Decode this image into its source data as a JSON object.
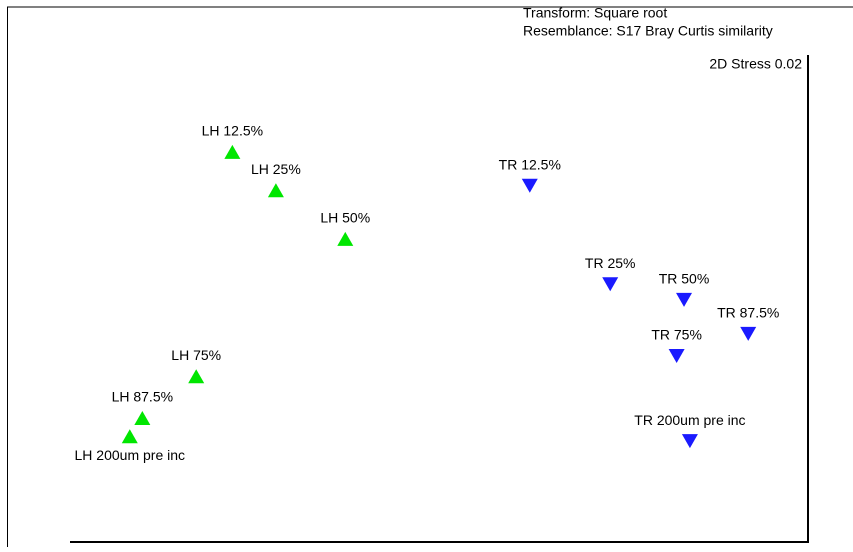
{
  "chart_data": {
    "type": "scatter",
    "notes": [
      "Transform: Square root",
      "Resemblance: S17 Bray Curtis similarity"
    ],
    "stress": "2D Stress 0.02",
    "xlim": [
      0,
      100
    ],
    "ylim": [
      0,
      100
    ],
    "series": [
      {
        "color": "#00e600",
        "marker": "triangle-up",
        "labels": [
          "LH 12.5%",
          "LH 25%",
          "LH 50%",
          "LH 75%",
          "LH 87.5%",
          "LH 200um pre inc"
        ],
        "x": [
          22.0,
          27.9,
          37.3,
          17.1,
          9.8,
          8.1
        ],
        "values": [
          79.3,
          71.5,
          61.6,
          33.7,
          25.2,
          21.5
        ]
      },
      {
        "color": "#1a1aff",
        "marker": "triangle-down",
        "labels": [
          "TR 12.5%",
          "TR 25%",
          "TR 50%",
          "TR 87.5%",
          "TR 75%",
          "TR 200um pre inc"
        ],
        "x": [
          62.3,
          73.2,
          83.2,
          91.9,
          82.2,
          84.0
        ],
        "values": [
          72.4,
          52.4,
          49.2,
          42.3,
          37.8,
          20.5
        ]
      }
    ]
  }
}
